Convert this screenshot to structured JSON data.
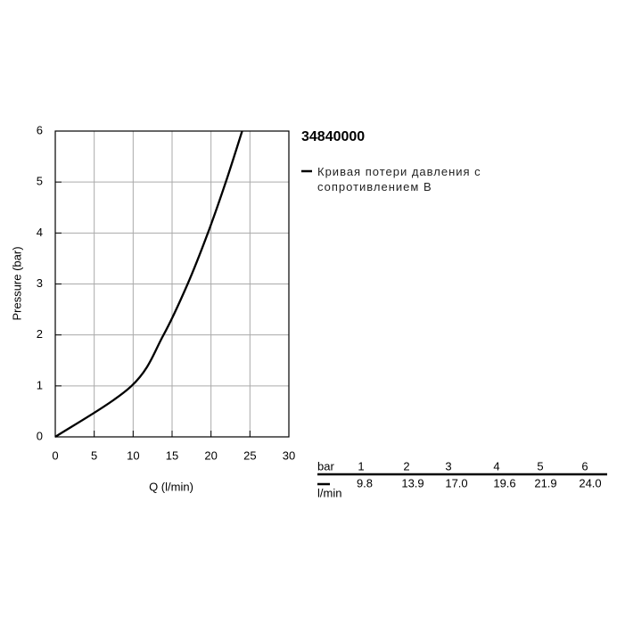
{
  "chart_data": {
    "type": "line",
    "title": "34840000",
    "x_label": "Q (l/min)",
    "y_label": "Pressure (bar)",
    "x": [
      0,
      9.8,
      13.9,
      17.0,
      19.6,
      21.9,
      24.0
    ],
    "series": [
      {
        "name": "Кривая потери давления с сопротивлением B",
        "color": "#000000",
        "values": [
          0,
          1,
          2,
          3,
          4,
          5,
          6
        ]
      }
    ],
    "xlim": [
      0,
      30
    ],
    "xticks": [
      0,
      5,
      10,
      15,
      20,
      25,
      30
    ],
    "ylim": [
      0,
      6
    ],
    "yticks": [
      0,
      1,
      2,
      3,
      4,
      5,
      6
    ],
    "grid": true
  },
  "table": {
    "row_labels": [
      "bar",
      "l/min"
    ],
    "rows": [
      [
        "1",
        "2",
        "3",
        "4",
        "5",
        "6"
      ],
      [
        "9.8",
        "13.9",
        "17.0",
        "19.6",
        "21.9",
        "24.0"
      ]
    ]
  }
}
